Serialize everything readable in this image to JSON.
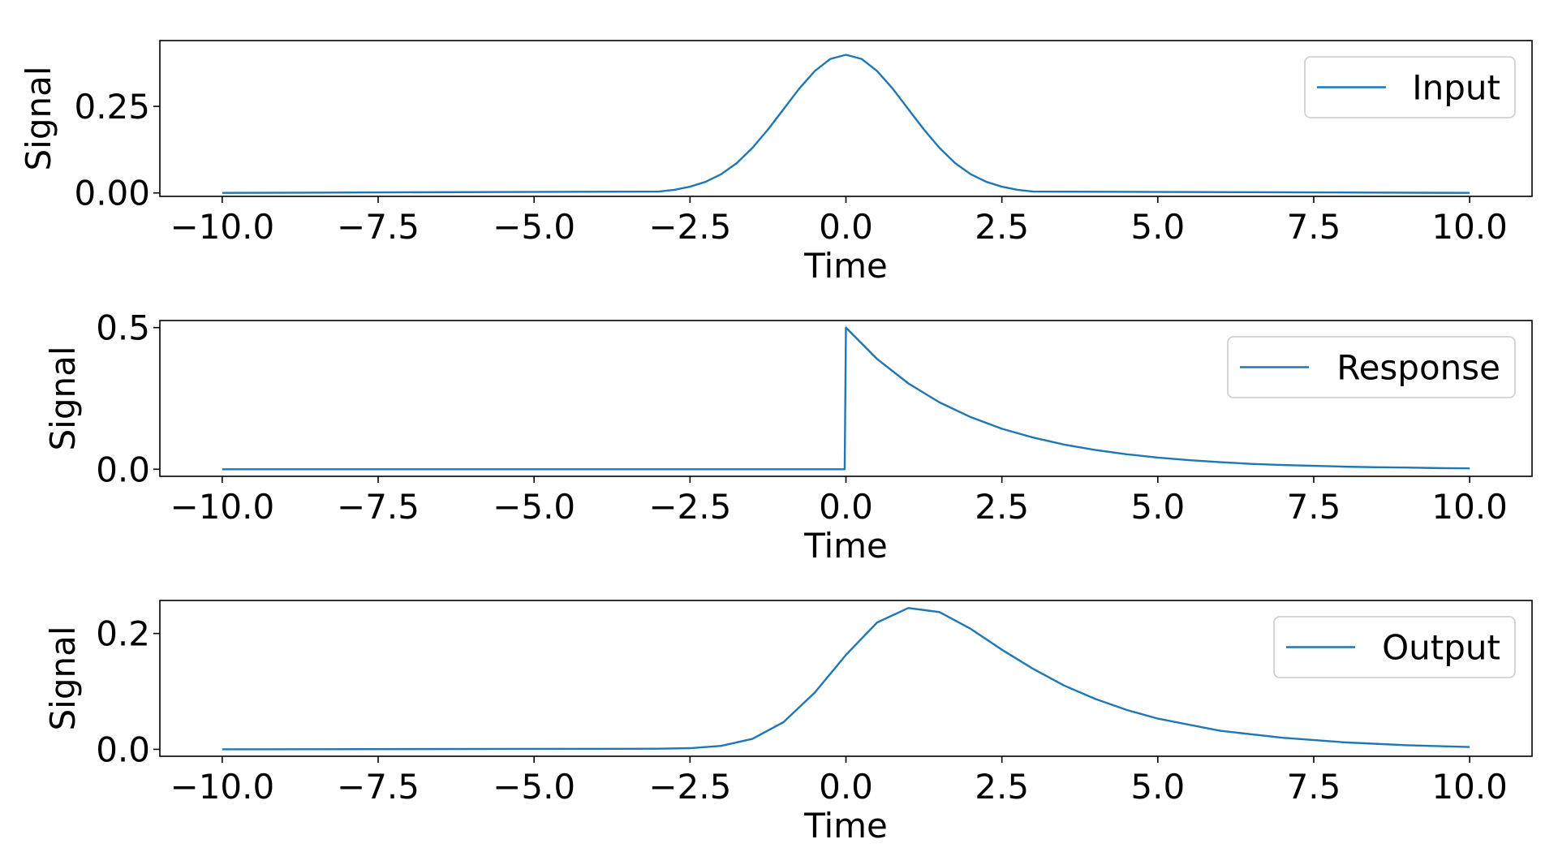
{
  "chart_data": [
    {
      "type": "line",
      "xlabel": "Time",
      "ylabel": "Signal",
      "xlim": [
        -11,
        11
      ],
      "ylim": [
        -0.01,
        0.44
      ],
      "x_ticks": [
        -10.0,
        -7.5,
        -5.0,
        -2.5,
        0.0,
        2.5,
        5.0,
        7.5,
        10.0
      ],
      "x_tick_labels": [
        "−10.0",
        "−7.5",
        "−5.0",
        "−2.5",
        "0.0",
        "2.5",
        "5.0",
        "7.5",
        "10.0"
      ],
      "y_ticks": [
        0.0,
        0.25
      ],
      "y_tick_labels": [
        "0.00",
        "0.25"
      ],
      "legend_placement": "upper right",
      "grid": false,
      "series": [
        {
          "name": "Input",
          "color": "#1f77b4",
          "x": [
            -10,
            -3,
            -2.75,
            -2.5,
            -2.25,
            -2,
            -1.75,
            -1.5,
            -1.25,
            -1,
            -0.75,
            -0.5,
            -0.25,
            0,
            0.25,
            0.5,
            0.75,
            1,
            1.25,
            1.5,
            1.75,
            2,
            2.25,
            2.5,
            2.75,
            3,
            10
          ],
          "y": [
            0.0,
            0.004,
            0.009,
            0.018,
            0.032,
            0.054,
            0.086,
            0.13,
            0.183,
            0.242,
            0.301,
            0.352,
            0.387,
            0.399,
            0.387,
            0.352,
            0.301,
            0.242,
            0.183,
            0.13,
            0.086,
            0.054,
            0.032,
            0.018,
            0.009,
            0.004,
            0.0
          ]
        }
      ]
    },
    {
      "type": "line",
      "xlabel": "Time",
      "ylabel": "Signal",
      "xlim": [
        -11,
        11
      ],
      "ylim": [
        -0.025,
        0.525
      ],
      "x_ticks": [
        -10.0,
        -7.5,
        -5.0,
        -2.5,
        0.0,
        2.5,
        5.0,
        7.5,
        10.0
      ],
      "x_tick_labels": [
        "−10.0",
        "−7.5",
        "−5.0",
        "−2.5",
        "0.0",
        "2.5",
        "5.0",
        "7.5",
        "10.0"
      ],
      "y_ticks": [
        0.0,
        0.5
      ],
      "y_tick_labels": [
        "0.0",
        "0.5"
      ],
      "legend_placement": "upper right",
      "grid": false,
      "series": [
        {
          "name": "Response",
          "color": "#1f77b4",
          "x": [
            -10,
            -0.02,
            0,
            0.5,
            1,
            1.5,
            2,
            2.5,
            3,
            3.5,
            4,
            4.5,
            5,
            5.5,
            6,
            6.5,
            7,
            7.5,
            8,
            8.5,
            9,
            9.5,
            10
          ],
          "y": [
            0.0,
            0.0,
            0.5,
            0.389,
            0.303,
            0.236,
            0.184,
            0.143,
            0.112,
            0.087,
            0.068,
            0.053,
            0.041,
            0.032,
            0.025,
            0.019,
            0.015,
            0.012,
            0.009,
            0.007,
            0.006,
            0.004,
            0.003
          ]
        }
      ]
    },
    {
      "type": "line",
      "xlabel": "Time",
      "ylabel": "Signal",
      "xlim": [
        -11,
        11
      ],
      "ylim": [
        -0.012,
        0.257
      ],
      "x_ticks": [
        -10.0,
        -7.5,
        -5.0,
        -2.5,
        0.0,
        2.5,
        5.0,
        7.5,
        10.0
      ],
      "x_tick_labels": [
        "−10.0",
        "−7.5",
        "−5.0",
        "−2.5",
        "0.0",
        "2.5",
        "5.0",
        "7.5",
        "10.0"
      ],
      "y_ticks": [
        0.0,
        0.2
      ],
      "y_tick_labels": [
        "0.0",
        "0.2"
      ],
      "legend_placement": "upper right",
      "grid": false,
      "series": [
        {
          "name": "Output",
          "color": "#1f77b4",
          "x": [
            -10,
            -3,
            -2.5,
            -2,
            -1.5,
            -1,
            -0.5,
            0,
            0.5,
            1,
            1.5,
            2,
            2.5,
            3,
            3.5,
            4,
            4.5,
            5,
            6,
            7,
            8,
            9,
            10
          ],
          "y": [
            0.0,
            0.001,
            0.002,
            0.006,
            0.018,
            0.047,
            0.098,
            0.163,
            0.219,
            0.244,
            0.237,
            0.208,
            0.172,
            0.139,
            0.11,
            0.087,
            0.068,
            0.053,
            0.032,
            0.02,
            0.012,
            0.007,
            0.004
          ]
        }
      ]
    }
  ]
}
